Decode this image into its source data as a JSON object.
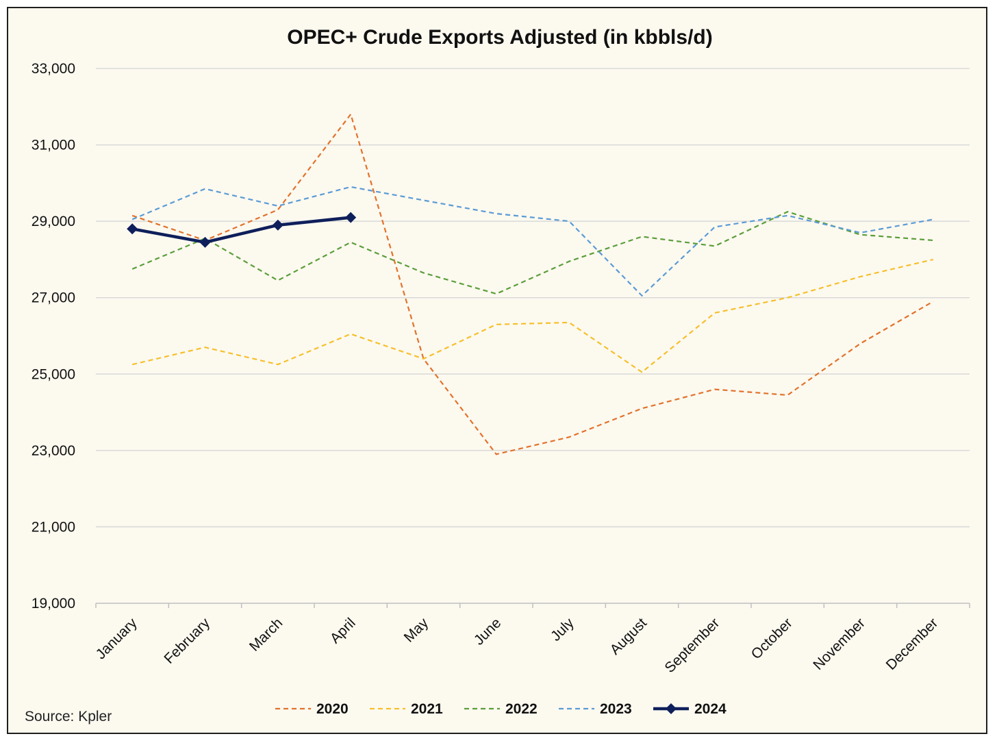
{
  "chart_data": {
    "type": "line",
    "title": "OPEC+ Crude Exports Adjusted (in kbbls/d)",
    "xlabel": "",
    "ylabel": "",
    "categories": [
      "January",
      "February",
      "March",
      "April",
      "May",
      "June",
      "July",
      "August",
      "September",
      "October",
      "November",
      "December"
    ],
    "ylim": [
      19000,
      33000
    ],
    "yticks": [
      19000,
      21000,
      23000,
      25000,
      27000,
      29000,
      31000,
      33000
    ],
    "ytick_labels": [
      "19,000",
      "21,000",
      "23,000",
      "25,000",
      "27,000",
      "29,000",
      "31,000",
      "33,000"
    ],
    "grid": "horizontal",
    "legend_position": "bottom",
    "source": "Source: Kpler",
    "series": [
      {
        "name": "2020",
        "color": "#e2722b",
        "style": "dashed",
        "values": [
          29150,
          28500,
          29300,
          31800,
          25400,
          22900,
          23350,
          24100,
          24600,
          24450,
          25800,
          26900
        ]
      },
      {
        "name": "2021",
        "color": "#f6c02b",
        "style": "dashed",
        "values": [
          25250,
          25700,
          25250,
          26050,
          25400,
          26300,
          26350,
          25050,
          26600,
          27000,
          27550,
          28000
        ]
      },
      {
        "name": "2022",
        "color": "#5a9e3a",
        "style": "dashed",
        "values": [
          27750,
          28550,
          27450,
          28450,
          27650,
          27100,
          27950,
          28600,
          28350,
          29250,
          28650,
          28500
        ]
      },
      {
        "name": "2023",
        "color": "#5a9bd5",
        "style": "dashed",
        "values": [
          29050,
          29850,
          29400,
          29900,
          29550,
          29200,
          29000,
          27050,
          28850,
          29150,
          28700,
          29050
        ]
      },
      {
        "name": "2024",
        "color": "#0e1f5b",
        "style": "solid-diamond",
        "values": [
          28800,
          28450,
          28900,
          29100,
          null,
          null,
          null,
          null,
          null,
          null,
          null,
          null
        ]
      }
    ]
  }
}
